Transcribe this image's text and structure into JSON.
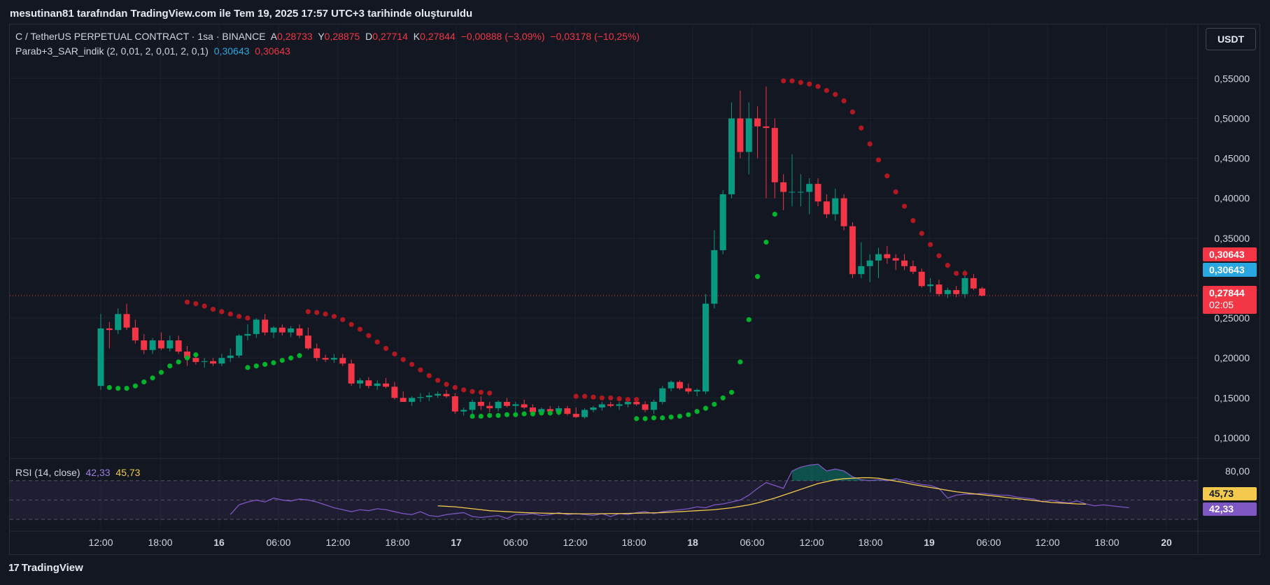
{
  "header": {
    "credit": "mesutinan81 tarafından TradingView.com ile Tem 19, 2025 17:57 UTC+3 tarihinde oluşturuldu"
  },
  "legend": {
    "symbol": "C / TetherUS PERPETUAL CONTRACT · 1sa · BINANCE",
    "o_label": "A",
    "o_val": "0,28733",
    "h_label": "Y",
    "h_val": "0,28875",
    "l_label": "D",
    "l_val": "0,27714",
    "c_label": "K",
    "c_val": "0,27844",
    "change": "−0,00888 (−3,09%)",
    "change2": "−0,03178 (−10,25%)",
    "indicator_name": "Parab+3_SAR_indik (2, 0,01, 2, 0,01, 2, 0,1)",
    "ind_val1": "0,30643",
    "ind_val2": "0,30643",
    "rsi_name": "RSI (14, close)",
    "rsi_val": "42,33",
    "rsi_ma_val": "45,73"
  },
  "currency_button": "USDT",
  "price_tags": {
    "sar_red": "0,30643",
    "sar_blue": "0,30643",
    "last_price": "0,27844",
    "countdown": "02:05"
  },
  "rsi_tags": {
    "ma": "45,73",
    "rsi": "42,33"
  },
  "footer": {
    "brand": "TradingView",
    "logo": "17"
  },
  "colors": {
    "background": "#131722",
    "up": "#089981",
    "down": "#f23645",
    "sar_up": "#00b32a",
    "sar_down": "#b2181f",
    "rsi": "#7e57c2",
    "rsi_ma": "#f2c94c"
  },
  "chart_data": {
    "type": "candlestick",
    "title": "C / TetherUS PERPETUAL CONTRACT · 1sa · BINANCE",
    "y_ticks": [
      "0,55000",
      "0,50000",
      "0,45000",
      "0,40000",
      "0,35000",
      "0,25000",
      "0,20000",
      "0,15000",
      "0,10000"
    ],
    "y_tick_values": [
      0.55,
      0.5,
      0.45,
      0.4,
      0.35,
      0.25,
      0.2,
      0.15,
      0.1
    ],
    "x_ticks": [
      "12:00",
      "18:00",
      "16",
      "06:00",
      "12:00",
      "18:00",
      "17",
      "06:00",
      "12:00",
      "18:00",
      "18",
      "06:00",
      "12:00",
      "18:00",
      "19",
      "06:00",
      "12:00",
      "18:00",
      "20"
    ],
    "ylim": [
      0.075,
      0.58
    ],
    "bar_count": 105,
    "candles": [
      [
        0.165,
        0.255,
        0.16,
        0.237
      ],
      [
        0.237,
        0.245,
        0.212,
        0.235
      ],
      [
        0.235,
        0.262,
        0.23,
        0.255
      ],
      [
        0.255,
        0.268,
        0.235,
        0.238
      ],
      [
        0.238,
        0.248,
        0.218,
        0.222
      ],
      [
        0.222,
        0.23,
        0.205,
        0.21
      ],
      [
        0.21,
        0.225,
        0.205,
        0.222
      ],
      [
        0.222,
        0.232,
        0.21,
        0.212
      ],
      [
        0.212,
        0.228,
        0.208,
        0.222
      ],
      [
        0.222,
        0.228,
        0.205,
        0.208
      ],
      [
        0.208,
        0.215,
        0.19,
        0.2
      ],
      [
        0.2,
        0.205,
        0.192,
        0.195
      ],
      [
        0.195,
        0.2,
        0.188,
        0.196
      ],
      [
        0.196,
        0.2,
        0.19,
        0.193
      ],
      [
        0.193,
        0.205,
        0.19,
        0.2
      ],
      [
        0.2,
        0.212,
        0.195,
        0.203
      ],
      [
        0.203,
        0.23,
        0.2,
        0.228
      ],
      [
        0.228,
        0.242,
        0.222,
        0.23
      ],
      [
        0.23,
        0.25,
        0.225,
        0.248
      ],
      [
        0.248,
        0.255,
        0.228,
        0.232
      ],
      [
        0.232,
        0.24,
        0.225,
        0.238
      ],
      [
        0.238,
        0.242,
        0.228,
        0.232
      ],
      [
        0.232,
        0.24,
        0.226,
        0.237
      ],
      [
        0.237,
        0.242,
        0.225,
        0.228
      ],
      [
        0.228,
        0.238,
        0.21,
        0.212
      ],
      [
        0.212,
        0.218,
        0.196,
        0.2
      ],
      [
        0.2,
        0.204,
        0.195,
        0.198
      ],
      [
        0.198,
        0.205,
        0.194,
        0.2
      ],
      [
        0.2,
        0.205,
        0.19,
        0.193
      ],
      [
        0.193,
        0.198,
        0.165,
        0.168
      ],
      [
        0.168,
        0.175,
        0.162,
        0.172
      ],
      [
        0.172,
        0.176,
        0.162,
        0.165
      ],
      [
        0.165,
        0.172,
        0.16,
        0.168
      ],
      [
        0.168,
        0.175,
        0.162,
        0.164
      ],
      [
        0.164,
        0.17,
        0.148,
        0.15
      ],
      [
        0.15,
        0.158,
        0.145,
        0.145
      ],
      [
        0.145,
        0.152,
        0.14,
        0.15
      ],
      [
        0.15,
        0.156,
        0.145,
        0.151
      ],
      [
        0.151,
        0.157,
        0.146,
        0.153
      ],
      [
        0.153,
        0.158,
        0.15,
        0.155
      ],
      [
        0.155,
        0.16,
        0.15,
        0.152
      ],
      [
        0.152,
        0.156,
        0.13,
        0.133
      ],
      [
        0.133,
        0.138,
        0.128,
        0.135
      ],
      [
        0.135,
        0.148,
        0.13,
        0.145
      ],
      [
        0.145,
        0.152,
        0.135,
        0.14
      ],
      [
        0.14,
        0.145,
        0.132,
        0.137
      ],
      [
        0.137,
        0.147,
        0.133,
        0.145
      ],
      [
        0.145,
        0.15,
        0.138,
        0.14
      ],
      [
        0.14,
        0.145,
        0.132,
        0.142
      ],
      [
        0.142,
        0.148,
        0.136,
        0.138
      ],
      [
        0.138,
        0.142,
        0.128,
        0.132
      ],
      [
        0.132,
        0.138,
        0.13,
        0.136
      ],
      [
        0.136,
        0.14,
        0.13,
        0.133
      ],
      [
        0.133,
        0.14,
        0.128,
        0.137
      ],
      [
        0.137,
        0.14,
        0.128,
        0.13
      ],
      [
        0.13,
        0.138,
        0.125,
        0.126
      ],
      [
        0.126,
        0.137,
        0.124,
        0.135
      ],
      [
        0.135,
        0.14,
        0.132,
        0.138
      ],
      [
        0.138,
        0.145,
        0.134,
        0.142
      ],
      [
        0.142,
        0.145,
        0.138,
        0.14
      ],
      [
        0.14,
        0.145,
        0.135,
        0.142
      ],
      [
        0.142,
        0.148,
        0.138,
        0.145
      ],
      [
        0.145,
        0.148,
        0.14,
        0.142
      ],
      [
        0.142,
        0.146,
        0.132,
        0.135
      ],
      [
        0.135,
        0.148,
        0.13,
        0.145
      ],
      [
        0.145,
        0.165,
        0.142,
        0.162
      ],
      [
        0.162,
        0.172,
        0.158,
        0.17
      ],
      [
        0.17,
        0.172,
        0.16,
        0.162
      ],
      [
        0.162,
        0.168,
        0.155,
        0.158
      ],
      [
        0.158,
        0.162,
        0.152,
        0.16
      ],
      [
        0.158,
        0.28,
        0.155,
        0.268
      ],
      [
        0.268,
        0.36,
        0.262,
        0.335
      ],
      [
        0.335,
        0.41,
        0.33,
        0.405
      ],
      [
        0.405,
        0.52,
        0.4,
        0.5
      ],
      [
        0.5,
        0.535,
        0.45,
        0.458
      ],
      [
        0.458,
        0.52,
        0.43,
        0.5
      ],
      [
        0.5,
        0.515,
        0.45,
        0.49
      ],
      [
        0.49,
        0.54,
        0.4,
        0.488
      ],
      [
        0.488,
        0.5,
        0.4,
        0.42
      ],
      [
        0.42,
        0.43,
        0.385,
        0.408
      ],
      [
        0.408,
        0.455,
        0.39,
        0.408
      ],
      [
        0.408,
        0.43,
        0.39,
        0.408
      ],
      [
        0.408,
        0.425,
        0.38,
        0.418
      ],
      [
        0.418,
        0.425,
        0.39,
        0.396
      ],
      [
        0.396,
        0.405,
        0.375,
        0.38
      ],
      [
        0.38,
        0.412,
        0.372,
        0.4
      ],
      [
        0.4,
        0.405,
        0.36,
        0.365
      ],
      [
        0.365,
        0.37,
        0.3,
        0.305
      ],
      [
        0.305,
        0.345,
        0.3,
        0.315
      ],
      [
        0.315,
        0.33,
        0.295,
        0.322
      ],
      [
        0.322,
        0.338,
        0.3,
        0.33
      ],
      [
        0.33,
        0.34,
        0.318,
        0.325
      ],
      [
        0.325,
        0.33,
        0.31,
        0.322
      ],
      [
        0.322,
        0.33,
        0.31,
        0.315
      ],
      [
        0.315,
        0.322,
        0.305,
        0.308
      ],
      [
        0.308,
        0.312,
        0.288,
        0.29
      ],
      [
        0.29,
        0.3,
        0.282,
        0.292
      ],
      [
        0.292,
        0.298,
        0.277,
        0.28
      ],
      [
        0.28,
        0.288,
        0.275,
        0.285
      ],
      [
        0.285,
        0.29,
        0.276,
        0.28
      ],
      [
        0.28,
        0.31,
        0.275,
        0.3
      ],
      [
        0.3,
        0.305,
        0.285,
        0.287
      ],
      [
        0.287,
        0.289,
        0.277,
        0.278
      ]
    ],
    "sar": [
      {
        "start": 1,
        "values": [
          0.163,
          0.162,
          0.162,
          0.165,
          0.17,
          0.175,
          0.182,
          0.19,
          0.195,
          0.2,
          0.204
        ],
        "trend": "up"
      },
      {
        "start": 10,
        "values": [
          0.27,
          0.268,
          0.265,
          0.261,
          0.258,
          0.255,
          0.252,
          0.25
        ],
        "trend": "down"
      },
      {
        "start": 17,
        "values": [
          0.188,
          0.19,
          0.192,
          0.194,
          0.197,
          0.2,
          0.203
        ],
        "trend": "up"
      },
      {
        "start": 24,
        "values": [
          0.258,
          0.257,
          0.255,
          0.252,
          0.248,
          0.242,
          0.236,
          0.228,
          0.22,
          0.212,
          0.205,
          0.198,
          0.192,
          0.185,
          0.178,
          0.172,
          0.167,
          0.163,
          0.16,
          0.158,
          0.157,
          0.156
        ],
        "trend": "down"
      },
      {
        "start": 43,
        "values": [
          0.127,
          0.127,
          0.128,
          0.128,
          0.129,
          0.129,
          0.13,
          0.13,
          0.131,
          0.131,
          0.132
        ],
        "trend": "up"
      },
      {
        "start": 55,
        "values": [
          0.152,
          0.152,
          0.151,
          0.15,
          0.15,
          0.149,
          0.148,
          0.148
        ],
        "trend": "down"
      },
      {
        "start": 62,
        "values": [
          0.124,
          0.124,
          0.125,
          0.125,
          0.126,
          0.127,
          0.129,
          0.133,
          0.137,
          0.142,
          0.15,
          0.157,
          0.195,
          0.248,
          0.302,
          0.345,
          0.38
        ],
        "trend": "up"
      },
      {
        "start": 79,
        "values": [
          0.547,
          0.547,
          0.545,
          0.543,
          0.54,
          0.535,
          0.53,
          0.522,
          0.508,
          0.488,
          0.468,
          0.448,
          0.428,
          0.408,
          0.39,
          0.372,
          0.356,
          0.342,
          0.328,
          0.316,
          0.306,
          0.306
        ],
        "trend": "down"
      }
    ],
    "rsi": {
      "name": "RSI (14, close)",
      "ticks": [
        "80,00"
      ],
      "bands": [
        70,
        50,
        30
      ],
      "ylim": [
        20,
        90
      ],
      "values": [
        35,
        45,
        48,
        50,
        48,
        52,
        50,
        49,
        51,
        50,
        48,
        45,
        42,
        40,
        38,
        40,
        39,
        41,
        40,
        38,
        36,
        35,
        38,
        34,
        33,
        35,
        36,
        37,
        33,
        32,
        33,
        34,
        31,
        35,
        35,
        36,
        34,
        35,
        37,
        35,
        36,
        35,
        34,
        36,
        33,
        36,
        35,
        37,
        38,
        36,
        38,
        39,
        40,
        41,
        43,
        42,
        45,
        46,
        48,
        50,
        55,
        62,
        68,
        65,
        62,
        80,
        84,
        86,
        87,
        80,
        82,
        80,
        74,
        71,
        70,
        71,
        70,
        72,
        70,
        68,
        66,
        65,
        62,
        52,
        55,
        56,
        56,
        57,
        56,
        55,
        55,
        53,
        52,
        51,
        48,
        50,
        48,
        47,
        49,
        46,
        44,
        45,
        44,
        43,
        42
      ],
      "ma": [
        null,
        null,
        null,
        null,
        null,
        null,
        null,
        null,
        null,
        null,
        null,
        null,
        null,
        null,
        null,
        null,
        null,
        null,
        null,
        null,
        null,
        null,
        null,
        null,
        44,
        43.5,
        43,
        42,
        41,
        40,
        39,
        38.5,
        38,
        37.5,
        37,
        36.8,
        36.5,
        36.3,
        36.2,
        36,
        35.8,
        35.8,
        35.8,
        35.9,
        36,
        36,
        36.2,
        36.4,
        36.6,
        36.8,
        37,
        37.5,
        38,
        38.5,
        39,
        39.5,
        40,
        41,
        42,
        43.5,
        45,
        47,
        49.5,
        52,
        55,
        58,
        61,
        64,
        67,
        69,
        71,
        72,
        72.5,
        73,
        73,
        72.5,
        71,
        69.5,
        68,
        66,
        64.5,
        63,
        61.5,
        60,
        58.5,
        57.5,
        56.5,
        55.5,
        54.5,
        53.5,
        52.5,
        51.5,
        50.5,
        49.5,
        48.5,
        47.5,
        47,
        46.5,
        46,
        45.73
      ],
      "rsi_start": 15
    }
  }
}
